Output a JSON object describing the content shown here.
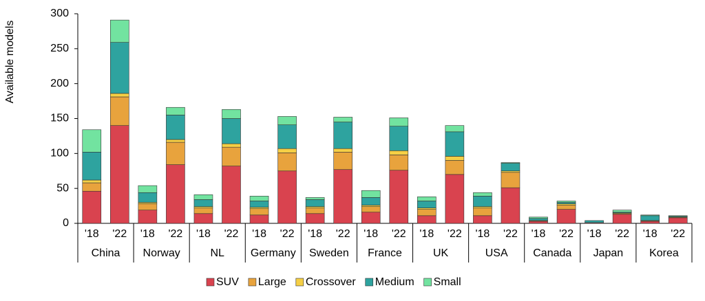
{
  "chart_data": {
    "type": "stacked_bar",
    "y_label": "Available models",
    "categories": [
      "'18",
      "'22",
      "'18",
      "'22",
      "'18",
      "'22",
      "'18",
      "'22",
      "'18",
      "'22",
      "'18",
      "'22",
      "'18",
      "'22",
      "'18",
      "'22",
      "'18",
      "'22",
      "'18",
      "'22",
      "'18",
      "'22"
    ],
    "groups": [
      "China",
      "Norway",
      "NL",
      "Germany",
      "Sweden",
      "France",
      "UK",
      "USA",
      "Canada",
      "Japan",
      "Korea"
    ],
    "series": [
      {
        "name": "SUV",
        "color": "#d9434f",
        "values": [
          46,
          140,
          19,
          84,
          14,
          82,
          12,
          75,
          14,
          77,
          16,
          76,
          11,
          70,
          11,
          51,
          3,
          20,
          1,
          13,
          3,
          8
        ]
      },
      {
        "name": "Large",
        "color": "#e8a33d",
        "values": [
          12,
          41,
          9,
          32,
          8,
          27,
          9,
          26,
          8,
          25,
          8,
          22,
          9,
          20,
          11,
          22,
          1,
          6,
          0,
          1,
          1,
          1
        ]
      },
      {
        "name": "Crossover",
        "color": "#f5cf45",
        "values": [
          4,
          5,
          2,
          4,
          2,
          5,
          2,
          6,
          2,
          5,
          2,
          6,
          2,
          6,
          2,
          2,
          0,
          2,
          0,
          1,
          0,
          0
        ]
      },
      {
        "name": "Medium",
        "color": "#2ea39f",
        "values": [
          40,
          73,
          14,
          35,
          10,
          36,
          9,
          34,
          10,
          38,
          11,
          35,
          10,
          35,
          15,
          11,
          3,
          2,
          3,
          1,
          7,
          1
        ]
      },
      {
        "name": "Small",
        "color": "#72e3a0",
        "values": [
          32,
          32,
          10,
          11,
          7,
          13,
          7,
          12,
          3,
          7,
          10,
          12,
          6,
          9,
          5,
          1,
          2,
          2,
          0,
          3,
          1,
          1
        ]
      }
    ],
    "ylim": [
      0,
      300
    ],
    "yticks": [
      0,
      50,
      100,
      150,
      200,
      250,
      300
    ]
  }
}
